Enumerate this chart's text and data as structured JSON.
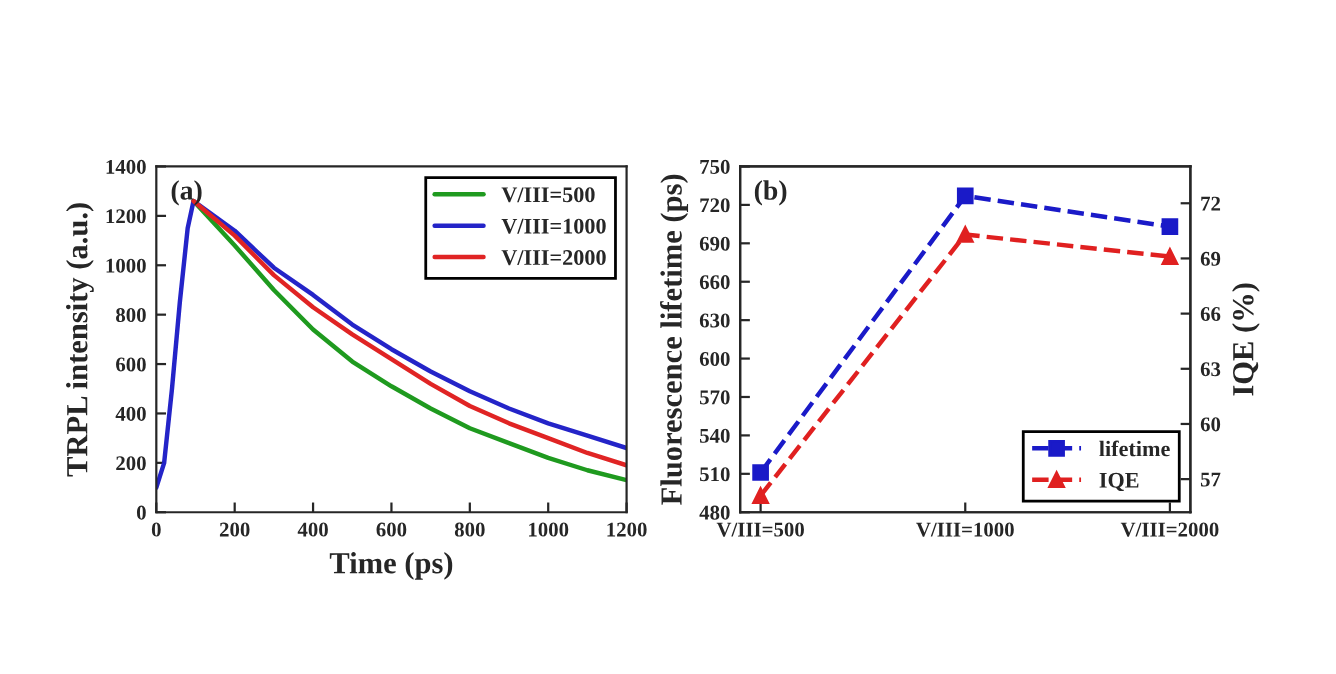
{
  "chart_data": [
    {
      "type": "line",
      "xlabel": "Time (ps)",
      "ylabel": "TRPL intensity (a.u.)",
      "annotations": [
        "(a)"
      ],
      "xlim": [
        0,
        1200
      ],
      "ylim": [
        0,
        1400
      ],
      "xticks": [
        0,
        200,
        400,
        600,
        800,
        1000,
        1200
      ],
      "yticks": [
        0,
        200,
        400,
        600,
        800,
        1000,
        1200,
        1400
      ],
      "x": [
        0,
        20,
        40,
        60,
        80,
        95,
        200,
        300,
        400,
        500,
        600,
        700,
        800,
        900,
        1000,
        1100,
        1200
      ],
      "legend": "top right",
      "grid": false,
      "marker": "none",
      "line_style": "solid",
      "series": [
        {
          "name": "V/III=500",
          "color": "#1f9a1f",
          "values": [
            null,
            null,
            null,
            null,
            null,
            1260,
            1080,
            900,
            740,
            610,
            510,
            420,
            340,
            280,
            220,
            170,
            130
          ]
        },
        {
          "name": "V/III=1000",
          "color": "#2424c8",
          "values": [
            100,
            200,
            500,
            850,
            1150,
            1260,
            1140,
            990,
            880,
            760,
            660,
            570,
            490,
            420,
            360,
            310,
            260
          ]
        },
        {
          "name": "V/III=2000",
          "color": "#e02424",
          "values": [
            null,
            null,
            null,
            null,
            null,
            1260,
            1120,
            960,
            830,
            720,
            620,
            520,
            430,
            360,
            300,
            240,
            190
          ]
        }
      ]
    },
    {
      "type": "line",
      "ylabel": "Fluorescence lifetime (ps)",
      "y2label": "IQE (%)",
      "annotations": [
        "(b)"
      ],
      "categories": [
        "V/III=500",
        "V/III=1000",
        "V/III=2000"
      ],
      "ylim": [
        480,
        750
      ],
      "yticks": [
        480,
        510,
        540,
        570,
        600,
        630,
        660,
        690,
        720,
        750
      ],
      "y2lim": [
        55.2,
        74
      ],
      "y2ticks": [
        57,
        60,
        63,
        66,
        69,
        72
      ],
      "legend": "bottom right",
      "grid": false,
      "line_style": "dashed",
      "series": [
        {
          "name": "lifetime",
          "color": "#1a1ac8",
          "marker": "square",
          "values": [
            511,
            727,
            703
          ]
        },
        {
          "name": "IQE",
          "color": "#e02020",
          "marker": "triangle",
          "axis": "y2",
          "values": [
            56.1,
            70.3,
            69.1
          ]
        }
      ]
    }
  ]
}
